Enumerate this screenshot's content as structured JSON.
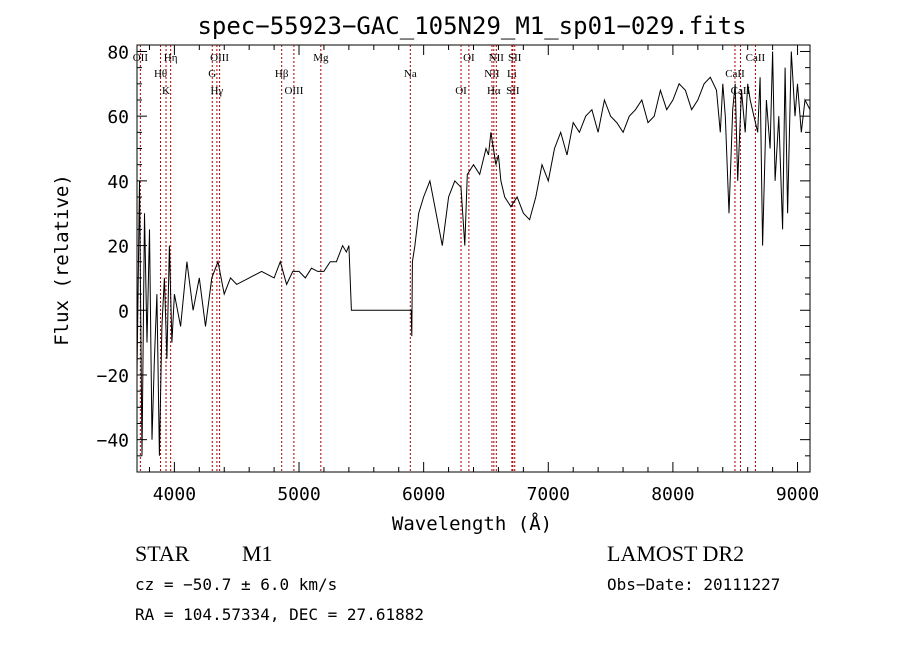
{
  "chart_data": {
    "type": "line",
    "title": "spec−55923−GAC_105N29_M1_sp01−029.fits",
    "xlabel": "Wavelength (Å)",
    "ylabel": "Flux (relative)",
    "xlim": [
      3700,
      9100
    ],
    "ylim": [
      -50,
      82
    ],
    "grid": false,
    "legend": "none",
    "xticks": [
      4000,
      5000,
      6000,
      7000,
      8000,
      9000
    ],
    "xtick_labels": [
      "4000",
      "5000",
      "6000",
      "7000",
      "8000",
      "9000"
    ],
    "yticks": [
      -40,
      -20,
      0,
      20,
      40,
      60,
      80
    ],
    "ytick_labels": [
      "−40",
      "−20",
      "0",
      "20",
      "40",
      "60",
      "80"
    ],
    "series": [
      {
        "x": [
          3700,
          3720,
          3740,
          3760,
          3780,
          3800,
          3820,
          3840,
          3860,
          3880,
          3900,
          3920,
          3940,
          3960,
          3980,
          4000,
          4050,
          4100,
          4150,
          4200,
          4250,
          4300,
          4350,
          4400,
          4450,
          4500,
          4600,
          4700,
          4800,
          4850,
          4900,
          4950,
          5000,
          5050,
          5100,
          5150,
          5200,
          5250,
          5300,
          5350,
          5380,
          5400,
          5420,
          5900,
          5905,
          5910,
          5930,
          5960,
          6000,
          6050,
          6100,
          6150,
          6200,
          6250,
          6300,
          6330,
          6350,
          6400,
          6450,
          6500,
          6520,
          6540,
          6560,
          6580,
          6600,
          6620,
          6650,
          6700,
          6750,
          6800,
          6850,
          6900,
          6950,
          7000,
          7050,
          7100,
          7150,
          7200,
          7250,
          7300,
          7350,
          7400,
          7450,
          7500,
          7550,
          7600,
          7650,
          7700,
          7750,
          7800,
          7850,
          7900,
          7950,
          8000,
          8050,
          8100,
          8150,
          8200,
          8250,
          8300,
          8350,
          8380,
          8400,
          8420,
          8450,
          8480,
          8500,
          8520,
          8550,
          8580,
          8600,
          8620,
          8650,
          8680,
          8700,
          8720,
          8750,
          8780,
          8800,
          8820,
          8850,
          8880,
          8900,
          8920,
          8950,
          8980,
          9000,
          9030,
          9060,
          9100
        ],
        "y": [
          -20,
          40,
          -45,
          30,
          -10,
          25,
          -40,
          -15,
          5,
          -45,
          -5,
          10,
          -15,
          20,
          -10,
          5,
          -5,
          15,
          0,
          10,
          -5,
          10,
          15,
          5,
          10,
          8,
          10,
          12,
          10,
          15,
          8,
          12,
          12,
          10,
          13,
          12,
          12,
          15,
          15,
          20,
          18,
          20,
          0,
          0,
          -8,
          15,
          20,
          30,
          35,
          40,
          30,
          20,
          35,
          40,
          38,
          20,
          42,
          45,
          42,
          50,
          48,
          55,
          50,
          45,
          48,
          40,
          35,
          32,
          35,
          30,
          28,
          35,
          45,
          40,
          50,
          55,
          48,
          58,
          55,
          60,
          62,
          55,
          65,
          60,
          58,
          55,
          60,
          62,
          65,
          58,
          60,
          68,
          62,
          65,
          70,
          68,
          62,
          65,
          70,
          72,
          68,
          55,
          70,
          60,
          30,
          62,
          70,
          40,
          68,
          55,
          70,
          65,
          60,
          55,
          72,
          20,
          65,
          50,
          80,
          40,
          60,
          25,
          75,
          30,
          80,
          60,
          70,
          55,
          65,
          62
        ]
      }
    ],
    "lines": [
      {
        "x": 3727,
        "label": "OII"
      },
      {
        "x": 3889,
        "label": "Hθ"
      },
      {
        "x": 3933,
        "label": "K"
      },
      {
        "x": 3970,
        "label": "Hη"
      },
      {
        "x": 4304,
        "label": "G"
      },
      {
        "x": 4341,
        "label": "Hγ"
      },
      {
        "x": 4363,
        "label": "OIII"
      },
      {
        "x": 4861,
        "label": "Hβ"
      },
      {
        "x": 4959,
        "label": "OIII"
      },
      {
        "x": 5175,
        "label": "Mg"
      },
      {
        "x": 5893,
        "label": "Na"
      },
      {
        "x": 6300,
        "label": "OI"
      },
      {
        "x": 6363,
        "label": "OI"
      },
      {
        "x": 6548,
        "label": "NII"
      },
      {
        "x": 6563,
        "label": "Hα"
      },
      {
        "x": 6583,
        "label": "NII"
      },
      {
        "x": 6708,
        "label": "Li"
      },
      {
        "x": 6716,
        "label": "SII"
      },
      {
        "x": 6731,
        "label": "SII"
      },
      {
        "x": 8498,
        "label": "CaII"
      },
      {
        "x": 8542,
        "label": "CaII"
      },
      {
        "x": 8662,
        "label": "CaII"
      }
    ]
  },
  "info": {
    "object_class": "STAR",
    "subclass": "M1",
    "survey": "LAMOST DR2",
    "cz_line": "cz = −50.7 ± 6.0 km/s",
    "obs_date": "Obs−Date: 20111227",
    "coords_line": "RA = 104.57334, DEC =  27.61882"
  },
  "colors": {
    "line_marker": "#a80000",
    "spectrum": "#000000",
    "axis": "#000000"
  }
}
